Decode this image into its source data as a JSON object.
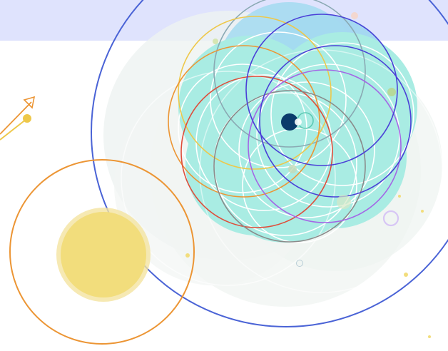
{
  "illustration": {
    "description_free": true,
    "colors": {
      "top_band": "#dfe3fd",
      "background": "#ffffff",
      "pale_disc": "#eef3f1",
      "teal_fill": "#a9ece3",
      "light_blue_fill": "#9fd6ef",
      "big_ring": "#4a63d6",
      "orange_ring": "#ec9534",
      "yellow_ring": "#eec84a",
      "red_ring": "#df4d3a",
      "gray_ring": "#8a8a8a",
      "indigo_ring": "#4a3fd7",
      "purple_ring": "#a466e6",
      "navy_dot": "#0b3b6b",
      "teal_ring": "#5cc9b4",
      "lavender_ring": "#d7c6f5",
      "sun_yellow": "#f2dd7c",
      "green_dot": "#b6d99a"
    },
    "icons": [
      "arrow-icon",
      "sun-icon",
      "planet-dot-icon"
    ]
  }
}
